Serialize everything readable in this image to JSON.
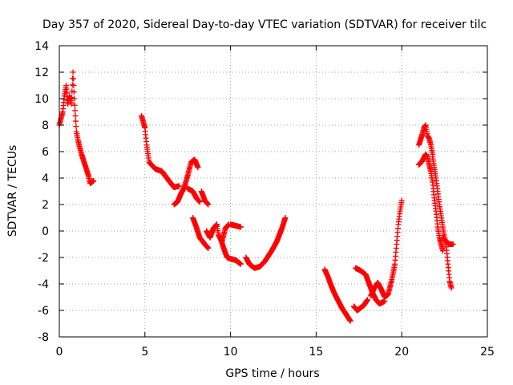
{
  "chart_data": {
    "type": "scatter",
    "title": "Day 357 of 2020, Sidereal Day-to-day VTEC variation (SDTVAR) for receiver tilc",
    "xlabel": "GPS time / hours",
    "ylabel": "SDTVAR / TECUs",
    "xlim": [
      0,
      25
    ],
    "ylim": [
      -8,
      14
    ],
    "xticks": [
      "0",
      "5",
      "10",
      "15",
      "20",
      "25"
    ],
    "yticks": [
      "-8",
      "-6",
      "-4",
      "-2",
      "0",
      "2",
      "4",
      "6",
      "8",
      "10",
      "12",
      "14"
    ],
    "grid": true,
    "marker": "+",
    "series_color": "#ff0000",
    "arcs": [
      [
        [
          0.0,
          8.0
        ],
        [
          0.2,
          9.0
        ],
        [
          0.3,
          10.2
        ],
        [
          0.4,
          11.0
        ],
        [
          0.5,
          9.6
        ],
        [
          0.6,
          10.2
        ],
        [
          0.7,
          9.6
        ],
        [
          0.8,
          12.0
        ],
        [
          0.9,
          9.5
        ],
        [
          1.0,
          7.5
        ],
        [
          1.1,
          6.8
        ],
        [
          1.3,
          5.8
        ],
        [
          1.5,
          5.0
        ],
        [
          1.7,
          4.2
        ],
        [
          1.8,
          3.6
        ],
        [
          2.0,
          3.8
        ]
      ],
      [
        [
          4.8,
          8.7
        ],
        [
          5.0,
          7.8
        ],
        [
          5.1,
          6.5
        ],
        [
          5.25,
          5.2
        ],
        [
          5.6,
          4.7
        ],
        [
          6.0,
          4.5
        ],
        [
          6.4,
          3.8
        ],
        [
          6.7,
          3.3
        ],
        [
          7.0,
          3.4
        ]
      ],
      [
        [
          6.7,
          2.0
        ],
        [
          6.9,
          2.2
        ],
        [
          7.1,
          2.8
        ],
        [
          7.3,
          3.3
        ],
        [
          7.5,
          4.2
        ],
        [
          7.7,
          5.2
        ],
        [
          7.9,
          5.4
        ],
        [
          8.1,
          4.8
        ]
      ],
      [
        [
          7.5,
          3.2
        ],
        [
          7.8,
          3.0
        ],
        [
          8.0,
          2.5
        ],
        [
          8.2,
          2.2
        ]
      ],
      [
        [
          8.3,
          3.0
        ],
        [
          8.5,
          2.3
        ],
        [
          8.7,
          2.0
        ]
      ],
      [
        [
          7.8,
          1.0
        ],
        [
          8.0,
          0.3
        ],
        [
          8.2,
          -0.5
        ],
        [
          8.5,
          -1.0
        ],
        [
          8.7,
          -1.3
        ]
      ],
      [
        [
          8.6,
          0.0
        ],
        [
          8.8,
          -0.5
        ],
        [
          9.0,
          0.2
        ],
        [
          9.2,
          0.5
        ],
        [
          9.3,
          -0.3
        ],
        [
          9.5,
          -0.8
        ],
        [
          9.7,
          0.2
        ],
        [
          9.9,
          0.5
        ]
      ],
      [
        [
          9.4,
          -0.5
        ],
        [
          9.6,
          -1.3
        ],
        [
          9.8,
          -2.0
        ],
        [
          10.0,
          -2.1
        ],
        [
          10.3,
          -2.2
        ],
        [
          10.6,
          -2.5
        ]
      ],
      [
        [
          10.0,
          0.5
        ],
        [
          10.3,
          0.4
        ],
        [
          10.6,
          0.3
        ]
      ],
      [
        [
          10.9,
          -2.0
        ],
        [
          11.1,
          -2.5
        ],
        [
          11.4,
          -2.8
        ],
        [
          11.7,
          -2.7
        ],
        [
          12.0,
          -2.3
        ],
        [
          12.4,
          -1.5
        ],
        [
          12.7,
          -0.8
        ],
        [
          13.0,
          0.2
        ],
        [
          13.2,
          1.0
        ]
      ],
      [
        [
          15.5,
          -2.9
        ],
        [
          15.7,
          -3.5
        ],
        [
          15.9,
          -4.2
        ],
        [
          16.1,
          -4.8
        ],
        [
          16.3,
          -5.3
        ],
        [
          16.5,
          -5.8
        ],
        [
          16.7,
          -6.2
        ],
        [
          16.9,
          -6.6
        ],
        [
          17.0,
          -6.8
        ]
      ],
      [
        [
          17.2,
          -5.7
        ],
        [
          17.4,
          -6.0
        ],
        [
          17.6,
          -5.8
        ],
        [
          17.8,
          -5.6
        ],
        [
          18.0,
          -5.2
        ]
      ],
      [
        [
          17.3,
          -2.8
        ],
        [
          17.6,
          -3.0
        ],
        [
          17.9,
          -3.3
        ],
        [
          18.1,
          -4.0
        ],
        [
          18.3,
          -4.7
        ],
        [
          18.5,
          -5.2
        ],
        [
          18.7,
          -5.5
        ],
        [
          19.0,
          -5.3
        ]
      ],
      [
        [
          18.2,
          -4.9
        ],
        [
          18.4,
          -4.3
        ],
        [
          18.6,
          -3.9
        ],
        [
          18.8,
          -4.4
        ],
        [
          19.0,
          -5.0
        ],
        [
          19.2,
          -4.8
        ],
        [
          19.4,
          -3.8
        ],
        [
          19.6,
          -2.5
        ],
        [
          19.7,
          -1.0
        ],
        [
          19.8,
          0.5
        ],
        [
          19.9,
          1.5
        ],
        [
          20.0,
          2.3
        ]
      ],
      [
        [
          21.0,
          6.5
        ],
        [
          21.2,
          7.3
        ],
        [
          21.3,
          7.8
        ],
        [
          21.4,
          8.0
        ],
        [
          21.5,
          7.2
        ],
        [
          21.6,
          7.0
        ],
        [
          21.7,
          6.5
        ],
        [
          21.8,
          5.8
        ]
      ],
      [
        [
          21.0,
          5.0
        ],
        [
          21.2,
          5.3
        ],
        [
          21.4,
          5.8
        ],
        [
          21.5,
          5.6
        ],
        [
          21.6,
          5.0
        ],
        [
          21.7,
          4.5
        ],
        [
          21.8,
          3.7
        ],
        [
          21.9,
          2.5
        ],
        [
          22.0,
          1.5
        ],
        [
          22.1,
          0.3
        ],
        [
          22.2,
          -0.5
        ],
        [
          22.3,
          -1.0
        ],
        [
          22.4,
          -1.5
        ]
      ],
      [
        [
          21.8,
          5.6
        ],
        [
          22.0,
          4.0
        ],
        [
          22.2,
          2.0
        ],
        [
          22.4,
          0.3
        ],
        [
          22.6,
          -1.2
        ],
        [
          22.7,
          -2.5
        ],
        [
          22.8,
          -3.8
        ],
        [
          22.9,
          -4.3
        ]
      ],
      [
        [
          22.4,
          -0.5
        ],
        [
          22.6,
          -0.8
        ],
        [
          22.8,
          -1.0
        ],
        [
          23.0,
          -1.0
        ]
      ]
    ]
  }
}
